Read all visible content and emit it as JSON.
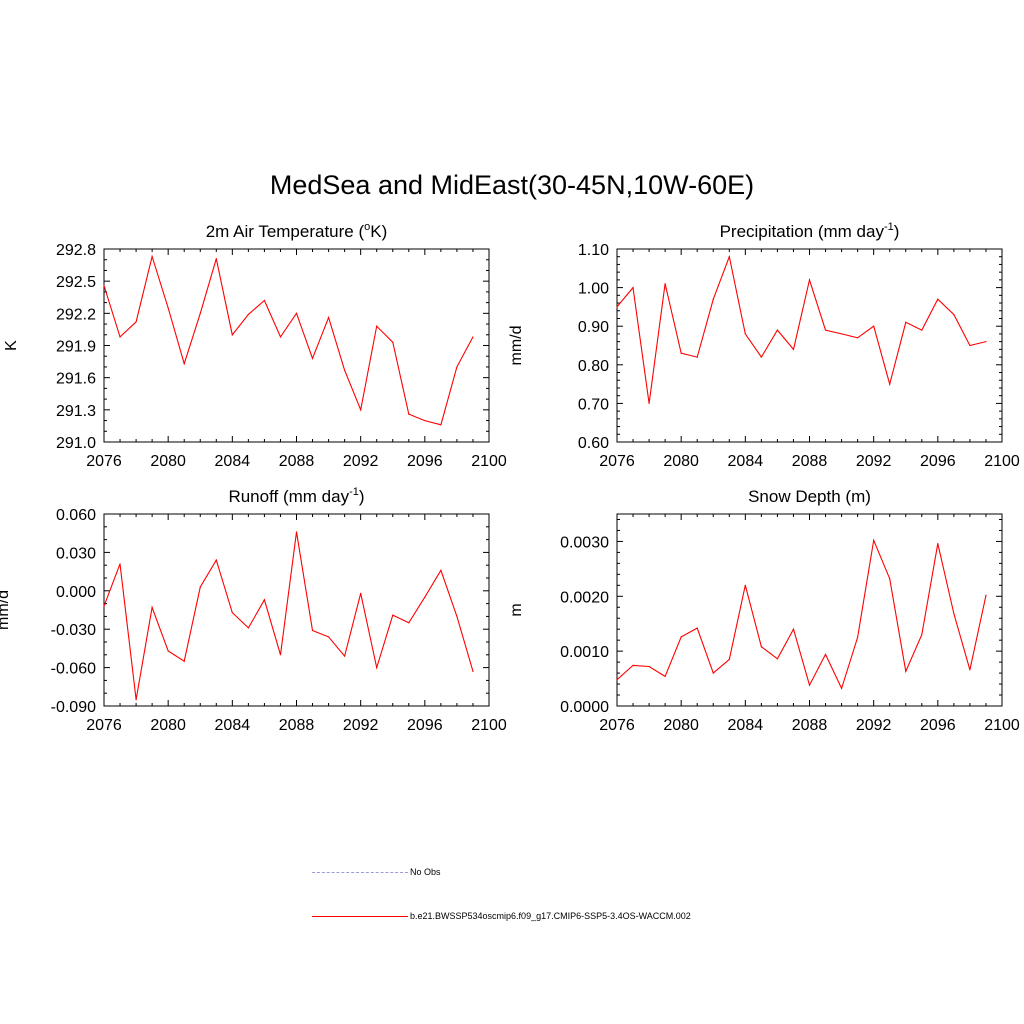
{
  "title": "MedSea and MidEast(30-45N,10W-60E)",
  "colors": {
    "series": "#ff0000",
    "obs": "#9999dd",
    "axis": "#000000"
  },
  "legend": {
    "obs_label": "No Obs",
    "model_label": "b.e21.BWSSP534oscmip6.f09_g17.CMIP6-SSP5-3.4OS-WACCM.002"
  },
  "chart_data": [
    {
      "id": "temp",
      "type": "line",
      "title": "2m Air Temperature (",
      "title_sup": "o",
      "title_after": "K)",
      "ylabel": "K",
      "xlim": [
        2076,
        2100
      ],
      "xticks": [
        2076,
        2080,
        2084,
        2088,
        2092,
        2096,
        2100
      ],
      "ylim": [
        291.0,
        292.8
      ],
      "yticks": [
        "291.0",
        "291.3",
        "291.6",
        "291.9",
        "292.2",
        "292.5",
        "292.8"
      ],
      "x": [
        2076,
        2077,
        2078,
        2079,
        2080,
        2081,
        2082,
        2083,
        2084,
        2085,
        2086,
        2087,
        2088,
        2089,
        2090,
        2091,
        2092,
        2093,
        2094,
        2095,
        2096,
        2097,
        2098,
        2099
      ],
      "values": [
        292.46,
        291.98,
        292.12,
        292.73,
        292.25,
        291.73,
        292.2,
        292.71,
        292.0,
        292.19,
        292.32,
        291.98,
        292.2,
        291.78,
        292.16,
        291.67,
        291.3,
        292.08,
        291.93,
        291.26,
        291.2,
        291.16,
        291.7,
        291.98
      ]
    },
    {
      "id": "precip",
      "type": "line",
      "title": "Precipitation (mm day",
      "title_sup": "-1",
      "title_after": ")",
      "ylabel": "mm/d",
      "xlim": [
        2076,
        2100
      ],
      "xticks": [
        2076,
        2080,
        2084,
        2088,
        2092,
        2096,
        2100
      ],
      "ylim": [
        0.6,
        1.1
      ],
      "yticks": [
        "0.60",
        "0.70",
        "0.80",
        "0.90",
        "1.00",
        "1.10"
      ],
      "x": [
        2076,
        2077,
        2078,
        2079,
        2080,
        2081,
        2082,
        2083,
        2084,
        2085,
        2086,
        2087,
        2088,
        2089,
        2090,
        2091,
        2092,
        2093,
        2094,
        2095,
        2096,
        2097,
        2098,
        2099
      ],
      "values": [
        0.95,
        1.0,
        0.7,
        1.01,
        0.83,
        0.82,
        0.97,
        1.08,
        0.88,
        0.82,
        0.89,
        0.84,
        1.02,
        0.89,
        0.88,
        0.87,
        0.9,
        0.75,
        0.91,
        0.89,
        0.97,
        0.93,
        0.85,
        0.86
      ]
    },
    {
      "id": "runoff",
      "type": "line",
      "title": "Runoff (mm day",
      "title_sup": "-1",
      "title_after": ")",
      "ylabel": "mm/d",
      "xlim": [
        2076,
        2100
      ],
      "xticks": [
        2076,
        2080,
        2084,
        2088,
        2092,
        2096,
        2100
      ],
      "ylim": [
        -0.09,
        0.06
      ],
      "yticks": [
        "-0.090",
        "-0.060",
        "-0.030",
        "0.000",
        "0.030",
        "0.060"
      ],
      "x": [
        2076,
        2077,
        2078,
        2079,
        2080,
        2081,
        2082,
        2083,
        2084,
        2085,
        2086,
        2087,
        2088,
        2089,
        2090,
        2091,
        2092,
        2093,
        2094,
        2095,
        2096,
        2097,
        2098,
        2099
      ],
      "values": [
        -0.012,
        0.021,
        -0.085,
        -0.013,
        -0.047,
        -0.055,
        0.003,
        0.024,
        -0.017,
        -0.029,
        -0.007,
        -0.05,
        0.046,
        -0.031,
        -0.036,
        -0.051,
        -0.002,
        -0.06,
        -0.019,
        -0.025,
        -0.005,
        0.016,
        -0.02,
        -0.063
      ]
    },
    {
      "id": "snow",
      "type": "line",
      "title": "Snow Depth (m)",
      "title_sup": "",
      "title_after": "",
      "ylabel": "m",
      "xlim": [
        2076,
        2100
      ],
      "xticks": [
        2076,
        2080,
        2084,
        2088,
        2092,
        2096,
        2100
      ],
      "ylim": [
        0.0,
        0.0035
      ],
      "yticks": [
        "0.0000",
        "0.0010",
        "0.0020",
        "0.0030"
      ],
      "x": [
        2076,
        2077,
        2078,
        2079,
        2080,
        2081,
        2082,
        2083,
        2084,
        2085,
        2086,
        2087,
        2088,
        2089,
        2090,
        2091,
        2092,
        2093,
        2094,
        2095,
        2096,
        2097,
        2098,
        2099
      ],
      "values": [
        0.00048,
        0.00074,
        0.00072,
        0.00054,
        0.00126,
        0.00142,
        0.0006,
        0.00085,
        0.0022,
        0.00108,
        0.00086,
        0.0014,
        0.00038,
        0.00094,
        0.00032,
        0.00125,
        0.00302,
        0.00232,
        0.00063,
        0.0013,
        0.00296,
        0.00168,
        0.00066,
        0.00202
      ]
    }
  ]
}
